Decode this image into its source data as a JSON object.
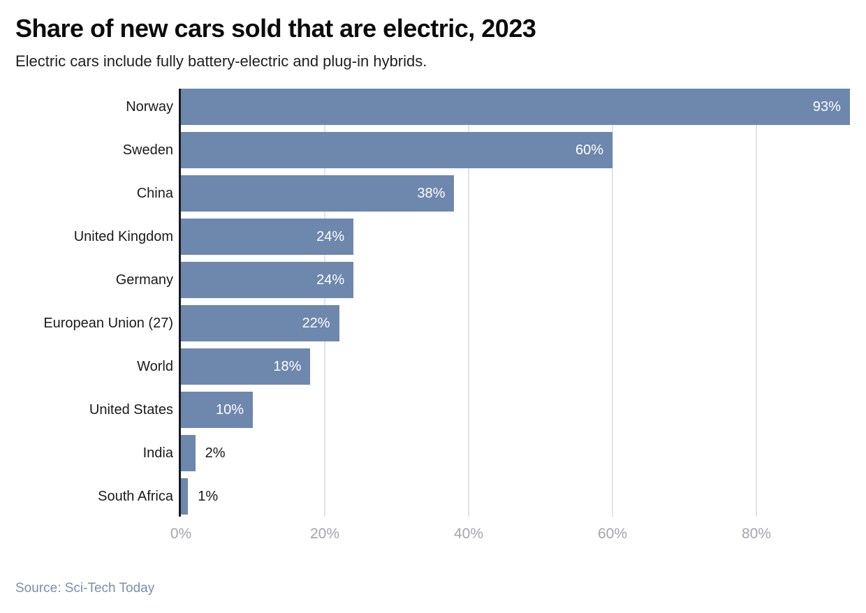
{
  "header": {
    "title": "Share of new cars sold that are electric, 2023",
    "subtitle": "Electric cars include fully battery-electric and plug-in hybrids."
  },
  "chart_data": {
    "type": "bar",
    "orientation": "horizontal",
    "title": "Share of new cars sold that are electric, 2023",
    "subtitle": "Electric cars include fully battery-electric and plug-in hybrids.",
    "categories": [
      "Norway",
      "Sweden",
      "China",
      "United Kingdom",
      "Germany",
      "European Union (27)",
      "World",
      "United States",
      "India",
      "South Africa"
    ],
    "values": [
      93,
      60,
      38,
      24,
      24,
      22,
      18,
      10,
      2,
      1
    ],
    "value_labels": [
      "93%",
      "60%",
      "38%",
      "24%",
      "24%",
      "22%",
      "18%",
      "10%",
      "2%",
      "1%"
    ],
    "x_ticks": [
      "0%",
      "20%",
      "40%",
      "60%",
      "80%"
    ],
    "x_tick_values": [
      0,
      20,
      40,
      60,
      80
    ],
    "xlim": [
      0,
      95
    ],
    "xlabel": "",
    "ylabel": "",
    "grid": true,
    "legend": "none",
    "bar_color": "#6e87ac",
    "gridline_color": "#e3e3e3",
    "axis_line_color": "#1b1b1f",
    "tick_label_color": "#a4a5ad",
    "inside_label_color": "#ffffff",
    "outside_label_color": "#1a1a1a",
    "label_inside_min_value": 10
  },
  "footer": {
    "source": "Source: Sci-Tech Today"
  }
}
